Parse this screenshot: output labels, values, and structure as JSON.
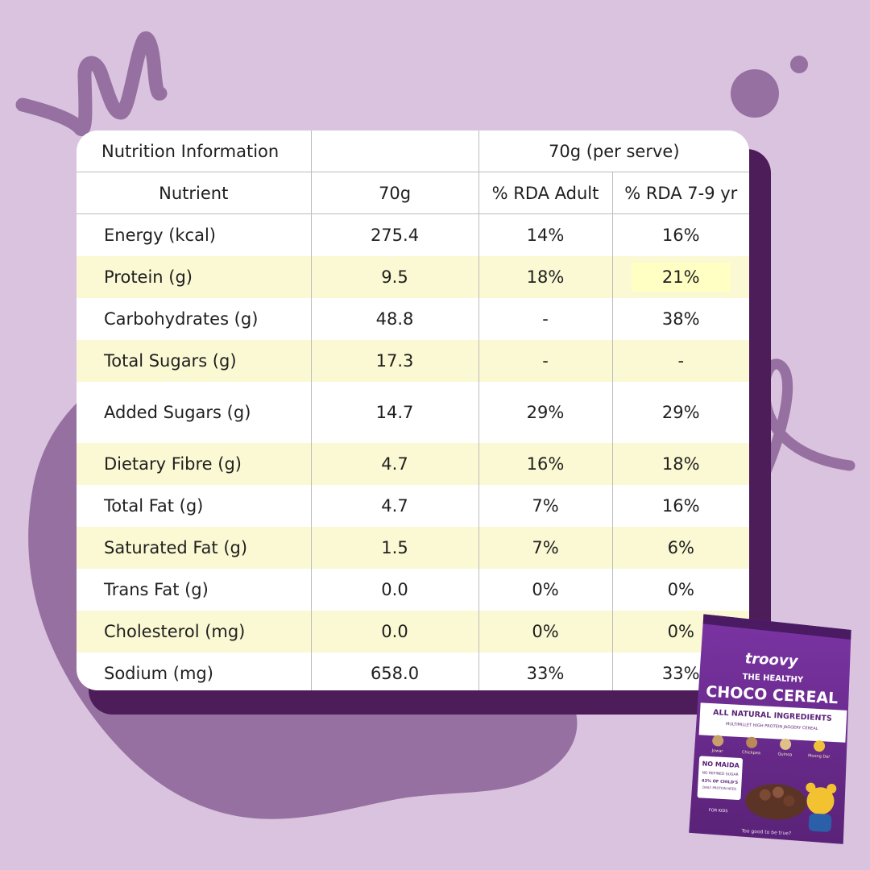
{
  "table": {
    "title": "Nutrition Information",
    "serving_header": "70g (per serve)",
    "columns": [
      "Nutrient",
      "70g",
      "% RDA Adult",
      "% RDA 7-9 yr"
    ],
    "rows": [
      {
        "nutrient": "Energy (kcal)",
        "amount": "275.4",
        "rda_adult": "14%",
        "rda_child": "16%"
      },
      {
        "nutrient": "Protein (g)",
        "amount": "9.5",
        "rda_adult": "18%",
        "rda_child": "21%"
      },
      {
        "nutrient": "Carbohydrates (g)",
        "amount": "48.8",
        "rda_adult": "-",
        "rda_child": "38%"
      },
      {
        "nutrient": "Total Sugars (g)",
        "amount": "17.3",
        "rda_adult": "-",
        "rda_child": "-"
      },
      {
        "nutrient": "Added Sugars (g)",
        "amount": "14.7",
        "rda_adult": "29%",
        "rda_child": "29%"
      },
      {
        "nutrient": "Dietary Fibre (g)",
        "amount": "4.7",
        "rda_adult": "16%",
        "rda_child": "18%"
      },
      {
        "nutrient": "Total Fat (g)",
        "amount": "4.7",
        "rda_adult": "7%",
        "rda_child": "16%"
      },
      {
        "nutrient": "Saturated Fat (g)",
        "amount": "1.5",
        "rda_adult": "7%",
        "rda_child": "6%"
      },
      {
        "nutrient": "Trans Fat (g)",
        "amount": "0.0",
        "rda_adult": "0%",
        "rda_child": "0%"
      },
      {
        "nutrient": "Cholesterol (mg)",
        "amount": "0.0",
        "rda_adult": "0%",
        "rda_child": "0%"
      },
      {
        "nutrient": "Sodium (mg)",
        "amount": "658.0",
        "rda_adult": "33%",
        "rda_child": "33%"
      }
    ]
  },
  "pack": {
    "brand": "troovy",
    "line1": "THE HEALTHY",
    "line2": "CHOCO CEREAL",
    "banner": "ALL NATURAL INGREDIENTS",
    "subtitle": "MULTIMILLET HIGH PROTEIN JAGGERY CEREAL",
    "ingredients": [
      "Jowar",
      "Chickpea",
      "Quinoa",
      "Moong Dal"
    ],
    "badge1": "NO MAIDA",
    "badge2": "NO REFINED SUGAR",
    "badge3": "43% OF CHILD'S",
    "badge4": "DAILY PROTEIN NEED",
    "for_kids": "FOR KIDS",
    "tagline": "Too good to be true?"
  },
  "colors": {
    "background": "#d9c3de",
    "blob": "#9670a0",
    "shadow": "#4d1d5a",
    "highlight_row": "#fbf9d3",
    "pack_purple": "#6a2c8e"
  }
}
